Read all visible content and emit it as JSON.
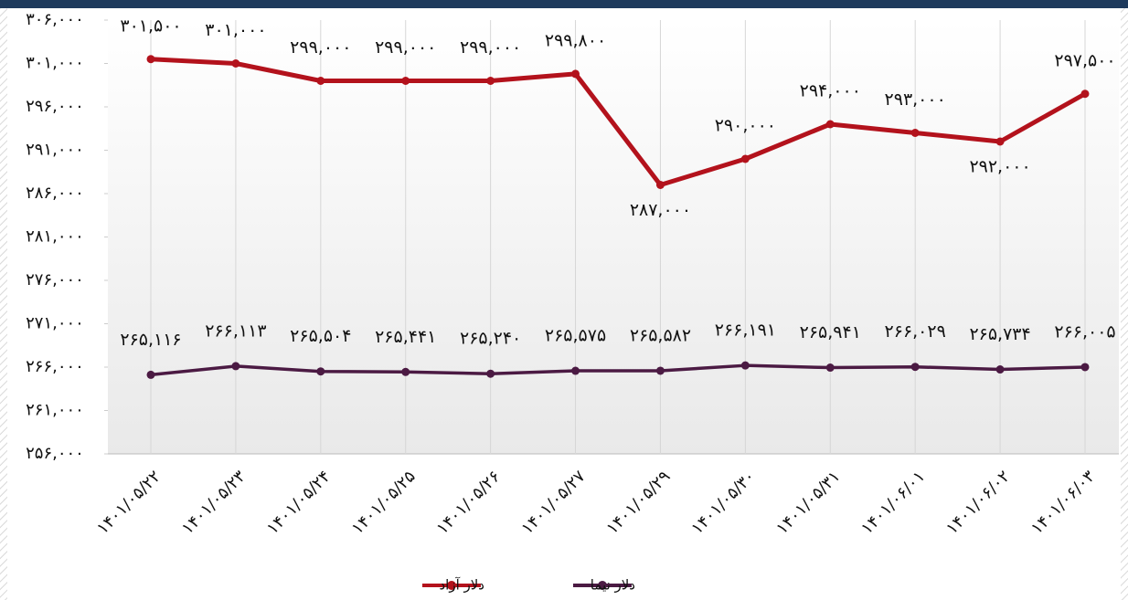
{
  "chart_data": {
    "type": "line",
    "categories": [
      "۱۴۰۱/۰۵/۲۲",
      "۱۴۰۱/۰۵/۲۳",
      "۱۴۰۱/۰۵/۲۴",
      "۱۴۰۱/۰۵/۲۵",
      "۱۴۰۱/۰۵/۲۶",
      "۱۴۰۱/۰۵/۲۷",
      "۱۴۰۱/۰۵/۲۹",
      "۱۴۰۱/۰۵/۳۰",
      "۱۴۰۱/۰۵/۳۱",
      "۱۴۰۱/۰۶/۰۱",
      "۱۴۰۱/۰۶/۰۲",
      "۱۴۰۱/۰۶/۰۳"
    ],
    "series": [
      {
        "name": "دلار آزاد",
        "color": "#b3121c",
        "values": [
          301500,
          301000,
          299000,
          299000,
          299000,
          299800,
          287000,
          290000,
          294000,
          293000,
          292000,
          297500
        ],
        "value_labels": [
          "۳۰۱,۵۰۰",
          "۳۰۱,۰۰۰",
          "۲۹۹,۰۰۰",
          "۲۹۹,۰۰۰",
          "۲۹۹,۰۰۰",
          "۲۹۹,۸۰۰",
          "۲۸۷,۰۰۰",
          "۲۹۰,۰۰۰",
          "۲۹۴,۰۰۰",
          "۲۹۳,۰۰۰",
          "۲۹۲,۰۰۰",
          "۲۹۷,۵۰۰"
        ]
      },
      {
        "name": "دلار نیما",
        "color": "#4b1a43",
        "values": [
          265116,
          266113,
          265504,
          265441,
          265240,
          265575,
          265582,
          266191,
          265941,
          266029,
          265734,
          266005
        ],
        "value_labels": [
          "۲۶۵,۱۱۶",
          "۲۶۶,۱۱۳",
          "۲۶۵,۵۰۴",
          "۲۶۵,۴۴۱",
          "۲۶۵,۲۴۰",
          "۲۶۵,۵۷۵",
          "۲۶۵,۵۸۲",
          "۲۶۶,۱۹۱",
          "۲۶۵,۹۴۱",
          "۲۶۶,۰۲۹",
          "۲۶۵,۷۳۴",
          "۲۶۶,۰۰۵"
        ]
      }
    ],
    "ylim": [
      256000,
      306000
    ],
    "yticks": [
      {
        "value": 256000,
        "label": "۲۵۶,۰۰۰"
      },
      {
        "value": 261000,
        "label": "۲۶۱,۰۰۰"
      },
      {
        "value": 266000,
        "label": "۲۶۶,۰۰۰"
      },
      {
        "value": 271000,
        "label": "۲۷۱,۰۰۰"
      },
      {
        "value": 276000,
        "label": "۲۷۶,۰۰۰"
      },
      {
        "value": 281000,
        "label": "۲۸۱,۰۰۰"
      },
      {
        "value": 286000,
        "label": "۲۸۶,۰۰۰"
      },
      {
        "value": 291000,
        "label": "۲۹۱,۰۰۰"
      },
      {
        "value": 296000,
        "label": "۲۹۶,۰۰۰"
      },
      {
        "value": 301000,
        "label": "۳۰۱,۰۰۰"
      },
      {
        "value": 306000,
        "label": "۳۰۶,۰۰۰"
      }
    ],
    "grid": true,
    "legend": "bottom"
  }
}
